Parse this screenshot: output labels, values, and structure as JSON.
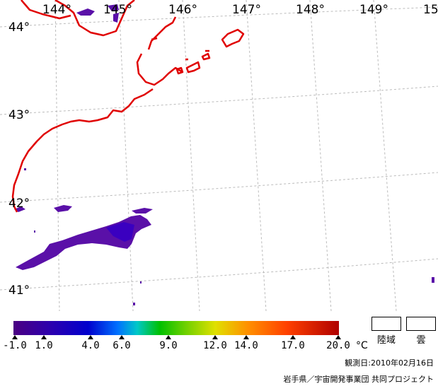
{
  "map": {
    "longitude_labels": [
      "144°",
      "145°",
      "146°",
      "147°",
      "148°",
      "149°",
      "15"
    ],
    "latitude_labels": [
      "44°",
      "43°",
      "42°",
      "41°"
    ],
    "colors": {
      "coastline": "#e00000",
      "graticule": "#bbbbbb",
      "sst_low": "#5a10a8",
      "sst_mid": "#3a00c0"
    }
  },
  "legend": {
    "tick_labels": [
      "-1.0",
      "1.0",
      "4.0",
      "6.0",
      "9.0",
      "12.0",
      "14.0",
      "17.0",
      "20.0"
    ],
    "unit": "°C",
    "land_label": "陸域",
    "cloud_label": "雲"
  },
  "footer": {
    "observation_date": "観測日:2010年02月16日",
    "credit": "岩手県／宇宙開発事業団 共同プロジェクト"
  }
}
